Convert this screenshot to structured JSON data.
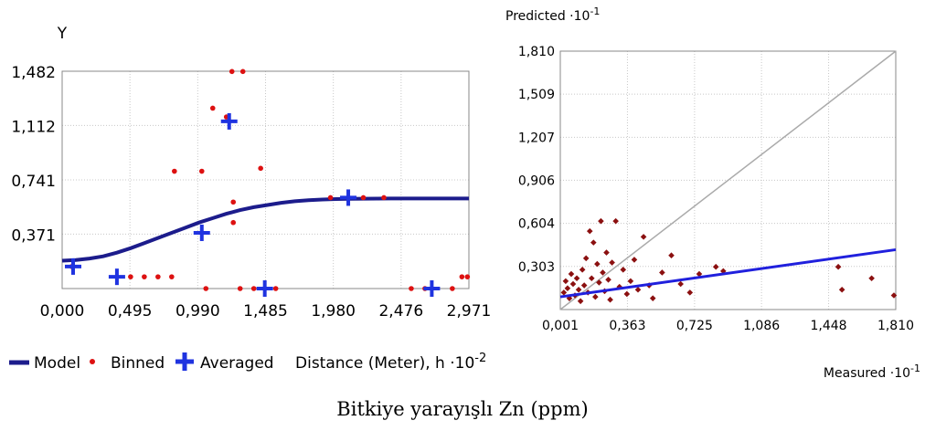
{
  "caption": "Bitkiye yarayışlı Zn (ppm)",
  "chart_data": [
    {
      "type": "scatter",
      "subtype": "semivariogram",
      "ylabel": "Y",
      "xlabel": "Distance (Meter), h",
      "xlabel_exp": "·10",
      "xlabel_exp_sup": "-2",
      "xlim": [
        0,
        2.971
      ],
      "ylim": [
        0,
        1.482
      ],
      "x_ticks": [
        "0,000",
        "0,495",
        "0,990",
        "1,485",
        "1,980",
        "2,476",
        "2,971"
      ],
      "y_ticks": [
        "0,371",
        "0,741",
        "1,112",
        "1,482"
      ],
      "grid": true,
      "legend": {
        "position": "bottom",
        "items": [
          {
            "label": "Model",
            "marker": "line",
            "color": "#1c1c8c"
          },
          {
            "label": "Binned",
            "marker": "dot",
            "color": "#dd1111"
          },
          {
            "label": "Averaged",
            "marker": "plus",
            "color": "#1f33e0"
          }
        ]
      },
      "model_curve": {
        "x": [
          0,
          0.1,
          0.2,
          0.3,
          0.4,
          0.5,
          0.6,
          0.7,
          0.8,
          0.9,
          1.0,
          1.1,
          1.2,
          1.3,
          1.4,
          1.5,
          1.6,
          1.7,
          1.8,
          1.9,
          2.0,
          2.1,
          2.2,
          2.4,
          2.6,
          2.8,
          2.971
        ],
        "y": [
          0.19,
          0.195,
          0.205,
          0.22,
          0.245,
          0.275,
          0.31,
          0.345,
          0.38,
          0.415,
          0.45,
          0.48,
          0.51,
          0.535,
          0.555,
          0.57,
          0.585,
          0.595,
          0.602,
          0.607,
          0.61,
          0.612,
          0.613,
          0.614,
          0.614,
          0.614,
          0.614
        ]
      },
      "binned": [
        {
          "x": 0.07,
          "y": 0.15
        },
        {
          "x": 0.5,
          "y": 0.08
        },
        {
          "x": 0.6,
          "y": 0.08
        },
        {
          "x": 0.7,
          "y": 0.08
        },
        {
          "x": 0.8,
          "y": 0.08
        },
        {
          "x": 0.82,
          "y": 0.8
        },
        {
          "x": 1.02,
          "y": 0.8
        },
        {
          "x": 1.05,
          "y": 0.0
        },
        {
          "x": 1.1,
          "y": 1.23
        },
        {
          "x": 1.2,
          "y": 1.17
        },
        {
          "x": 1.24,
          "y": 1.48
        },
        {
          "x": 1.32,
          "y": 1.48
        },
        {
          "x": 1.25,
          "y": 0.59
        },
        {
          "x": 1.25,
          "y": 0.45
        },
        {
          "x": 1.3,
          "y": 0.0
        },
        {
          "x": 1.4,
          "y": 0.0
        },
        {
          "x": 1.45,
          "y": 0.82
        },
        {
          "x": 1.56,
          "y": 0.0
        },
        {
          "x": 1.96,
          "y": 0.62
        },
        {
          "x": 2.2,
          "y": 0.62
        },
        {
          "x": 2.35,
          "y": 0.62
        },
        {
          "x": 2.55,
          "y": 0.0
        },
        {
          "x": 2.65,
          "y": 0.0
        },
        {
          "x": 2.85,
          "y": 0.0
        },
        {
          "x": 2.92,
          "y": 0.08
        },
        {
          "x": 2.96,
          "y": 0.08
        }
      ],
      "averaged": [
        {
          "x": 0.08,
          "y": 0.15
        },
        {
          "x": 0.4,
          "y": 0.08
        },
        {
          "x": 1.02,
          "y": 0.38
        },
        {
          "x": 1.22,
          "y": 1.14
        },
        {
          "x": 1.48,
          "y": 0.0
        },
        {
          "x": 2.09,
          "y": 0.62
        },
        {
          "x": 2.7,
          "y": 0.0
        }
      ]
    },
    {
      "type": "scatter",
      "subtype": "cross-validation",
      "xlabel": "Measured",
      "xlabel_exp": "·10",
      "xlabel_exp_sup": "-1",
      "ylabel": "Predicted",
      "ylabel_exp": "·10",
      "ylabel_exp_sup": "-1",
      "xlim": [
        0.001,
        1.81
      ],
      "ylim": [
        0.001,
        1.81
      ],
      "x_ticks": [
        "0,001",
        "0,363",
        "0,725",
        "1,086",
        "1,448",
        "1,810"
      ],
      "y_ticks": [
        "0,303",
        "0,604",
        "0,906",
        "1,207",
        "1,509",
        "1,810"
      ],
      "grid": true,
      "reference_line": {
        "x": [
          0.001,
          1.81
        ],
        "y": [
          0.001,
          1.81
        ],
        "color": "#aaaaaa"
      },
      "regression_line": {
        "x": [
          0.001,
          1.81
        ],
        "y": [
          0.09,
          0.42
        ],
        "color": "#2020dd"
      },
      "point_color": "#8b1010",
      "points": [
        {
          "x": 0.02,
          "y": 0.12
        },
        {
          "x": 0.03,
          "y": 0.2
        },
        {
          "x": 0.04,
          "y": 0.15
        },
        {
          "x": 0.05,
          "y": 0.08
        },
        {
          "x": 0.06,
          "y": 0.25
        },
        {
          "x": 0.07,
          "y": 0.18
        },
        {
          "x": 0.08,
          "y": 0.1
        },
        {
          "x": 0.09,
          "y": 0.22
        },
        {
          "x": 0.1,
          "y": 0.14
        },
        {
          "x": 0.11,
          "y": 0.06
        },
        {
          "x": 0.12,
          "y": 0.28
        },
        {
          "x": 0.13,
          "y": 0.17
        },
        {
          "x": 0.14,
          "y": 0.36
        },
        {
          "x": 0.15,
          "y": 0.12
        },
        {
          "x": 0.16,
          "y": 0.55
        },
        {
          "x": 0.17,
          "y": 0.22
        },
        {
          "x": 0.18,
          "y": 0.47
        },
        {
          "x": 0.19,
          "y": 0.09
        },
        {
          "x": 0.2,
          "y": 0.32
        },
        {
          "x": 0.21,
          "y": 0.19
        },
        {
          "x": 0.22,
          "y": 0.62
        },
        {
          "x": 0.23,
          "y": 0.26
        },
        {
          "x": 0.24,
          "y": 0.13
        },
        {
          "x": 0.25,
          "y": 0.4
        },
        {
          "x": 0.26,
          "y": 0.21
        },
        {
          "x": 0.27,
          "y": 0.07
        },
        {
          "x": 0.28,
          "y": 0.33
        },
        {
          "x": 0.3,
          "y": 0.62
        },
        {
          "x": 0.32,
          "y": 0.16
        },
        {
          "x": 0.34,
          "y": 0.28
        },
        {
          "x": 0.36,
          "y": 0.11
        },
        {
          "x": 0.38,
          "y": 0.2
        },
        {
          "x": 0.4,
          "y": 0.35
        },
        {
          "x": 0.42,
          "y": 0.14
        },
        {
          "x": 0.45,
          "y": 0.51
        },
        {
          "x": 0.48,
          "y": 0.17
        },
        {
          "x": 0.5,
          "y": 0.08
        },
        {
          "x": 0.55,
          "y": 0.26
        },
        {
          "x": 0.6,
          "y": 0.38
        },
        {
          "x": 0.65,
          "y": 0.18
        },
        {
          "x": 0.7,
          "y": 0.12
        },
        {
          "x": 0.75,
          "y": 0.25
        },
        {
          "x": 0.84,
          "y": 0.3
        },
        {
          "x": 0.88,
          "y": 0.27
        },
        {
          "x": 1.5,
          "y": 0.3
        },
        {
          "x": 1.52,
          "y": 0.14
        },
        {
          "x": 1.68,
          "y": 0.22
        },
        {
          "x": 1.8,
          "y": 0.1
        }
      ]
    }
  ]
}
